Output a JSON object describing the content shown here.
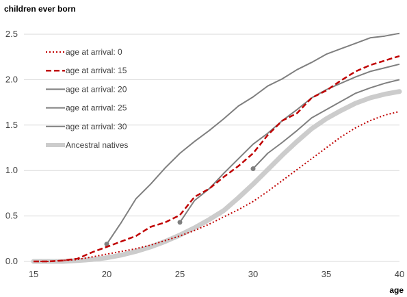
{
  "chart_data": {
    "type": "line",
    "title": "children ever born",
    "xlabel": "age",
    "ylabel": "",
    "xlim": [
      15,
      40
    ],
    "ylim": [
      0,
      2.5
    ],
    "x_ticks": [
      "15",
      "20",
      "25",
      "30",
      "35",
      "40"
    ],
    "y_ticks": [
      "0.0",
      "0.5",
      "1.0",
      "1.5",
      "2.0",
      "2.5"
    ],
    "grid": "horizontal",
    "legend_position": "top-left",
    "series": [
      {
        "name": "age at arrival: 0",
        "style": "dotted",
        "color": "#c00000",
        "marker_start": false,
        "x": [
          15,
          16,
          17,
          18,
          19,
          20,
          21,
          22,
          23,
          24,
          25,
          26,
          27,
          28,
          29,
          30,
          31,
          32,
          33,
          34,
          35,
          36,
          37,
          38,
          39,
          40
        ],
        "y": [
          0.0,
          0.0,
          0.01,
          0.02,
          0.05,
          0.08,
          0.11,
          0.14,
          0.18,
          0.23,
          0.28,
          0.34,
          0.41,
          0.49,
          0.57,
          0.66,
          0.77,
          0.89,
          1.01,
          1.13,
          1.25,
          1.37,
          1.47,
          1.55,
          1.61,
          1.65
        ]
      },
      {
        "name": "age at arrival: 15",
        "style": "dashed",
        "color": "#c00000",
        "marker_start": false,
        "x": [
          15,
          16,
          17,
          18,
          19,
          20,
          21,
          22,
          23,
          24,
          25,
          26,
          27,
          28,
          29,
          30,
          31,
          32,
          33,
          34,
          35,
          36,
          37,
          38,
          39,
          40
        ],
        "y": [
          0.0,
          0.0,
          0.01,
          0.03,
          0.1,
          0.16,
          0.22,
          0.28,
          0.38,
          0.43,
          0.51,
          0.71,
          0.8,
          0.93,
          1.05,
          1.19,
          1.39,
          1.55,
          1.63,
          1.8,
          1.88,
          1.99,
          2.09,
          2.16,
          2.21,
          2.26
        ]
      },
      {
        "name": "age at arrival: 20",
        "style": "solid",
        "color": "#7f7f7f",
        "marker_start": true,
        "x": [
          20,
          21,
          22,
          23,
          24,
          25,
          26,
          27,
          28,
          29,
          30,
          31,
          32,
          33,
          34,
          35,
          36,
          37,
          38,
          39,
          40
        ],
        "y": [
          0.19,
          0.43,
          0.69,
          0.85,
          1.03,
          1.19,
          1.32,
          1.44,
          1.57,
          1.71,
          1.81,
          1.93,
          2.01,
          2.11,
          2.19,
          2.28,
          2.34,
          2.4,
          2.46,
          2.48,
          2.51
        ]
      },
      {
        "name": "age at arrival: 25",
        "style": "solid",
        "color": "#7f7f7f",
        "marker_start": true,
        "x": [
          25,
          26,
          27,
          28,
          29,
          30,
          31,
          32,
          33,
          34,
          35,
          36,
          37,
          38,
          39,
          40
        ],
        "y": [
          0.43,
          0.67,
          0.8,
          0.97,
          1.13,
          1.29,
          1.41,
          1.55,
          1.67,
          1.8,
          1.89,
          1.96,
          2.03,
          2.09,
          2.13,
          2.17
        ]
      },
      {
        "name": "age at arrival: 30",
        "style": "solid",
        "color": "#7f7f7f",
        "marker_start": true,
        "x": [
          30,
          31,
          32,
          33,
          34,
          35,
          36,
          37,
          38,
          39,
          40
        ],
        "y": [
          1.02,
          1.19,
          1.31,
          1.44,
          1.58,
          1.67,
          1.76,
          1.85,
          1.91,
          1.96,
          2.0
        ]
      },
      {
        "name": "Ancestral natives",
        "style": "thick",
        "color": "#cccccc",
        "marker_start": false,
        "x": [
          15,
          16,
          17,
          18,
          19,
          20,
          21,
          22,
          23,
          24,
          25,
          26,
          27,
          28,
          29,
          30,
          31,
          32,
          33,
          34,
          35,
          36,
          37,
          38,
          39,
          40
        ],
        "y": [
          0.0,
          0.0,
          0.0,
          0.01,
          0.02,
          0.04,
          0.07,
          0.11,
          0.16,
          0.22,
          0.29,
          0.37,
          0.46,
          0.56,
          0.7,
          0.85,
          1.01,
          1.17,
          1.32,
          1.46,
          1.57,
          1.66,
          1.74,
          1.8,
          1.84,
          1.87
        ]
      }
    ]
  }
}
